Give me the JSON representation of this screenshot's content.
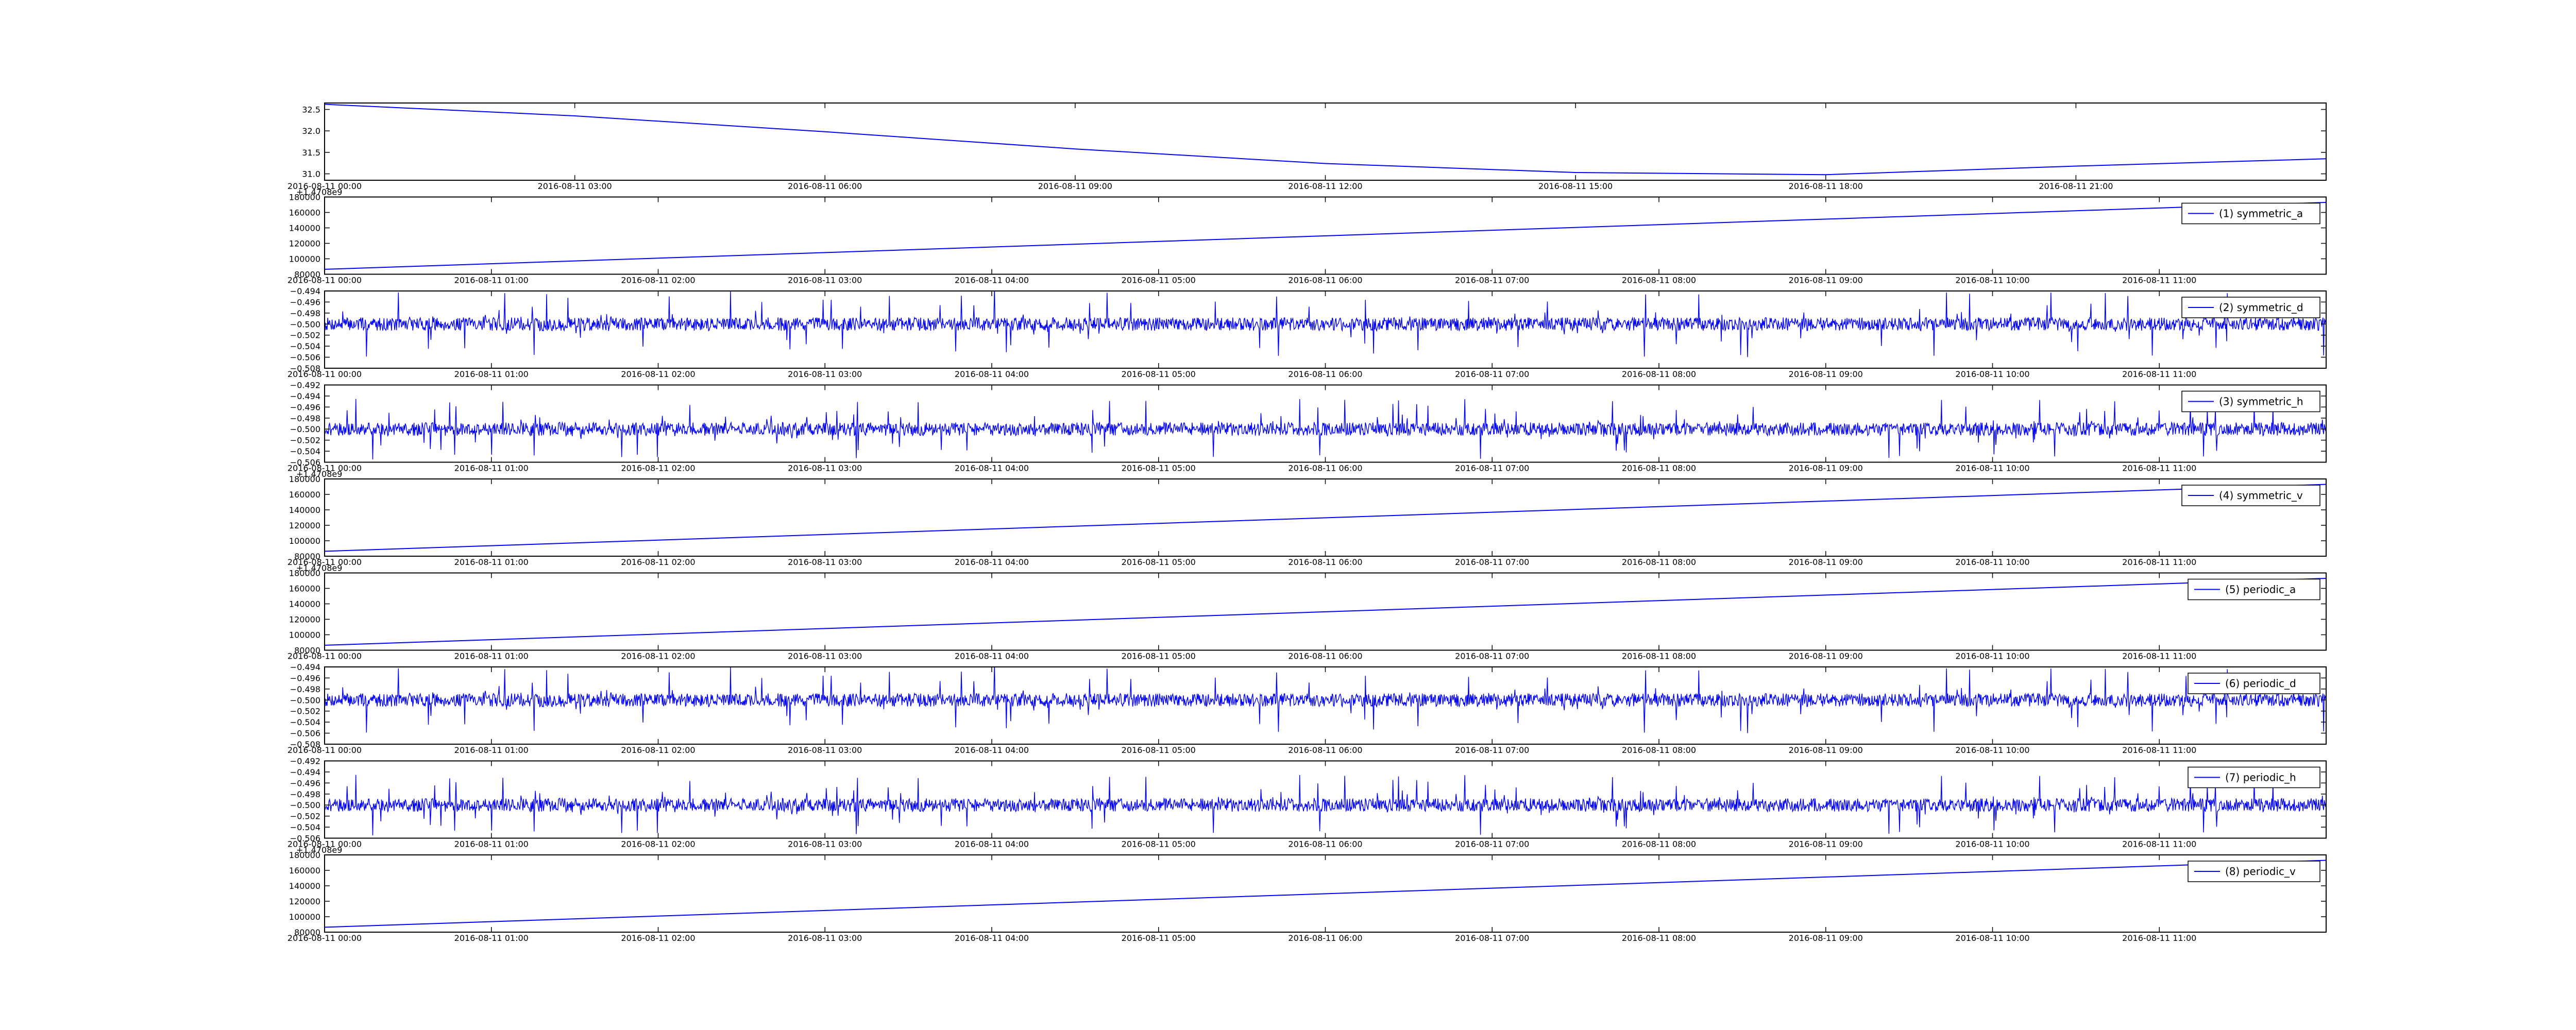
{
  "chart_data": [
    {
      "type": "line",
      "panel": 0,
      "legend": "",
      "color": "#0000ff",
      "x_ticks": [
        "2016-08-11 00:00",
        "2016-08-11 03:00",
        "2016-08-11 06:00",
        "2016-08-11 09:00",
        "2016-08-11 12:00",
        "2016-08-11 15:00",
        "2016-08-11 18:00",
        "2016-08-11 21:00"
      ],
      "xlim_hours": [
        0,
        24
      ],
      "y_ticks": [
        "31.0",
        "31.5",
        "32.0",
        "32.5"
      ],
      "y_tick_values": [
        31.0,
        31.5,
        32.0,
        32.5
      ],
      "ylim": [
        30.85,
        32.65
      ],
      "offset_text": "",
      "series": {
        "x_hours": [
          0,
          3,
          6,
          9,
          12,
          15,
          18,
          21,
          24
        ],
        "y": [
          32.62,
          32.35,
          31.98,
          31.58,
          31.24,
          31.03,
          30.98,
          31.18,
          31.35
        ]
      }
    },
    {
      "type": "line",
      "panel": 1,
      "legend": "(1) symmetric_a",
      "color": "#0000ff",
      "x_ticks": [
        "2016-08-11 00:00",
        "2016-08-11 01:00",
        "2016-08-11 02:00",
        "2016-08-11 03:00",
        "2016-08-11 04:00",
        "2016-08-11 05:00",
        "2016-08-11 06:00",
        "2016-08-11 07:00",
        "2016-08-11 08:00",
        "2016-08-11 09:00",
        "2016-08-11 10:00",
        "2016-08-11 11:00"
      ],
      "xlim_hours": [
        0,
        12
      ],
      "y_ticks": [
        "80000",
        "100000",
        "120000",
        "140000",
        "160000",
        "180000"
      ],
      "y_tick_values": [
        80000,
        100000,
        120000,
        140000,
        160000,
        180000
      ],
      "ylim": [
        80000,
        180000
      ],
      "offset_text": "+1.4708e9",
      "series": {
        "x_hours": [
          0,
          12
        ],
        "y": [
          86400,
          173000
        ]
      }
    },
    {
      "type": "line",
      "panel": 2,
      "legend": "(2) symmetric_d",
      "color": "#0000ff",
      "x_ticks": [
        "2016-08-11 00:00",
        "2016-08-11 01:00",
        "2016-08-11 02:00",
        "2016-08-11 03:00",
        "2016-08-11 04:00",
        "2016-08-11 05:00",
        "2016-08-11 06:00",
        "2016-08-11 07:00",
        "2016-08-11 08:00",
        "2016-08-11 09:00",
        "2016-08-11 10:00",
        "2016-08-11 11:00"
      ],
      "xlim_hours": [
        0,
        12
      ],
      "y_ticks": [
        "−0.494",
        "−0.496",
        "−0.498",
        "−0.500",
        "−0.502",
        "−0.504",
        "−0.506",
        "−0.508"
      ],
      "y_tick_values": [
        -0.494,
        -0.496,
        -0.498,
        -0.5,
        -0.502,
        -0.504,
        -0.506,
        -0.508
      ],
      "ylim": [
        -0.508,
        -0.494
      ],
      "offset_text": "",
      "noise": {
        "center": -0.5,
        "typical_amplitude": 0.0012,
        "spike_amplitude": 0.006,
        "seed": 7
      }
    },
    {
      "type": "line",
      "panel": 3,
      "legend": "(3) symmetric_h",
      "color": "#0000ff",
      "x_ticks": [
        "2016-08-11 00:00",
        "2016-08-11 01:00",
        "2016-08-11 02:00",
        "2016-08-11 03:00",
        "2016-08-11 04:00",
        "2016-08-11 05:00",
        "2016-08-11 06:00",
        "2016-08-11 07:00",
        "2016-08-11 08:00",
        "2016-08-11 09:00",
        "2016-08-11 10:00",
        "2016-08-11 11:00"
      ],
      "xlim_hours": [
        0,
        12
      ],
      "y_ticks": [
        "−0.492",
        "−0.494",
        "−0.496",
        "−0.498",
        "−0.500",
        "−0.502",
        "−0.504",
        "−0.506"
      ],
      "y_tick_values": [
        -0.492,
        -0.494,
        -0.496,
        -0.498,
        -0.5,
        -0.502,
        -0.504,
        -0.506
      ],
      "ylim": [
        -0.506,
        -0.492
      ],
      "offset_text": "",
      "noise": {
        "center": -0.5,
        "typical_amplitude": 0.0012,
        "spike_amplitude": 0.0055,
        "seed": 21
      }
    },
    {
      "type": "line",
      "panel": 4,
      "legend": "(4) symmetric_v",
      "color": "#0000ff",
      "x_ticks": [
        "2016-08-11 00:00",
        "2016-08-11 01:00",
        "2016-08-11 02:00",
        "2016-08-11 03:00",
        "2016-08-11 04:00",
        "2016-08-11 05:00",
        "2016-08-11 06:00",
        "2016-08-11 07:00",
        "2016-08-11 08:00",
        "2016-08-11 09:00",
        "2016-08-11 10:00",
        "2016-08-11 11:00"
      ],
      "xlim_hours": [
        0,
        12
      ],
      "y_ticks": [
        "80000",
        "100000",
        "120000",
        "140000",
        "160000",
        "180000"
      ],
      "y_tick_values": [
        80000,
        100000,
        120000,
        140000,
        160000,
        180000
      ],
      "ylim": [
        80000,
        180000
      ],
      "offset_text": "+1.4708e9",
      "series": {
        "x_hours": [
          0,
          12
        ],
        "y": [
          86400,
          173000
        ]
      }
    },
    {
      "type": "line",
      "panel": 5,
      "legend": "(5) periodic_a",
      "color": "#0000ff",
      "x_ticks": [
        "2016-08-11 00:00",
        "2016-08-11 01:00",
        "2016-08-11 02:00",
        "2016-08-11 03:00",
        "2016-08-11 04:00",
        "2016-08-11 05:00",
        "2016-08-11 06:00",
        "2016-08-11 07:00",
        "2016-08-11 08:00",
        "2016-08-11 09:00",
        "2016-08-11 10:00",
        "2016-08-11 11:00"
      ],
      "xlim_hours": [
        0,
        12
      ],
      "y_ticks": [
        "80000",
        "100000",
        "120000",
        "140000",
        "160000",
        "180000"
      ],
      "y_tick_values": [
        80000,
        100000,
        120000,
        140000,
        160000,
        180000
      ],
      "ylim": [
        80000,
        180000
      ],
      "offset_text": "+1.4708e9",
      "series": {
        "x_hours": [
          0,
          12
        ],
        "y": [
          86400,
          173000
        ]
      }
    },
    {
      "type": "line",
      "panel": 6,
      "legend": "(6) periodic_d",
      "color": "#0000ff",
      "x_ticks": [
        "2016-08-11 00:00",
        "2016-08-11 01:00",
        "2016-08-11 02:00",
        "2016-08-11 03:00",
        "2016-08-11 04:00",
        "2016-08-11 05:00",
        "2016-08-11 06:00",
        "2016-08-11 07:00",
        "2016-08-11 08:00",
        "2016-08-11 09:00",
        "2016-08-11 10:00",
        "2016-08-11 11:00"
      ],
      "xlim_hours": [
        0,
        12
      ],
      "y_ticks": [
        "−0.494",
        "−0.496",
        "−0.498",
        "−0.500",
        "−0.502",
        "−0.504",
        "−0.506",
        "−0.508"
      ],
      "y_tick_values": [
        -0.494,
        -0.496,
        -0.498,
        -0.5,
        -0.502,
        -0.504,
        -0.506,
        -0.508
      ],
      "ylim": [
        -0.508,
        -0.494
      ],
      "offset_text": "",
      "noise": {
        "center": -0.5,
        "typical_amplitude": 0.0012,
        "spike_amplitude": 0.006,
        "seed": 7
      }
    },
    {
      "type": "line",
      "panel": 7,
      "legend": "(7) periodic_h",
      "color": "#0000ff",
      "x_ticks": [
        "2016-08-11 00:00",
        "2016-08-11 01:00",
        "2016-08-11 02:00",
        "2016-08-11 03:00",
        "2016-08-11 04:00",
        "2016-08-11 05:00",
        "2016-08-11 06:00",
        "2016-08-11 07:00",
        "2016-08-11 08:00",
        "2016-08-11 09:00",
        "2016-08-11 10:00",
        "2016-08-11 11:00"
      ],
      "xlim_hours": [
        0,
        12
      ],
      "y_ticks": [
        "−0.492",
        "−0.494",
        "−0.496",
        "−0.498",
        "−0.500",
        "−0.502",
        "−0.504",
        "−0.506"
      ],
      "y_tick_values": [
        -0.492,
        -0.494,
        -0.496,
        -0.498,
        -0.5,
        -0.502,
        -0.504,
        -0.506
      ],
      "ylim": [
        -0.506,
        -0.492
      ],
      "offset_text": "",
      "noise": {
        "center": -0.5,
        "typical_amplitude": 0.0012,
        "spike_amplitude": 0.0055,
        "seed": 21
      }
    },
    {
      "type": "line",
      "panel": 8,
      "legend": "(8) periodic_v",
      "color": "#0000ff",
      "x_ticks": [
        "2016-08-11 00:00",
        "2016-08-11 01:00",
        "2016-08-11 02:00",
        "2016-08-11 03:00",
        "2016-08-11 04:00",
        "2016-08-11 05:00",
        "2016-08-11 06:00",
        "2016-08-11 07:00",
        "2016-08-11 08:00",
        "2016-08-11 09:00",
        "2016-08-11 10:00",
        "2016-08-11 11:00"
      ],
      "xlim_hours": [
        0,
        12
      ],
      "y_ticks": [
        "80000",
        "100000",
        "120000",
        "140000",
        "160000",
        "180000"
      ],
      "y_tick_values": [
        80000,
        100000,
        120000,
        140000,
        160000,
        180000
      ],
      "ylim": [
        80000,
        180000
      ],
      "offset_text": "+1.4708e9",
      "series": {
        "x_hours": [
          0,
          12
        ],
        "y": [
          86400,
          173000
        ]
      }
    }
  ]
}
